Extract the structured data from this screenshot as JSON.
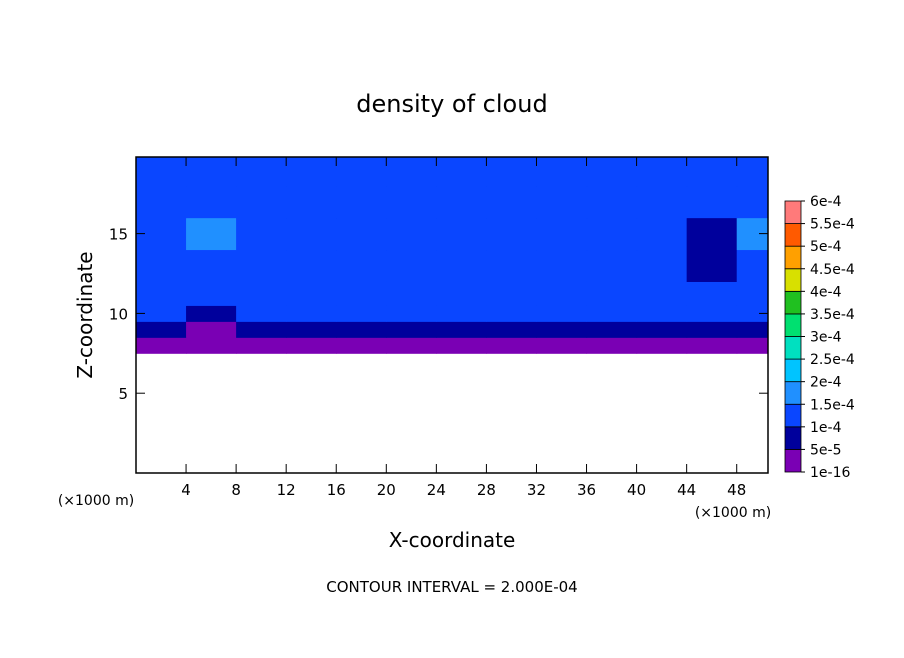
{
  "chart_data": {
    "type": "contour",
    "title": "density of cloud",
    "x_label": "X-coordinate",
    "y_label": "Z-coordinate",
    "x_unit_left": "(×1000 m)",
    "x_unit_right": "(×1000 m)",
    "annotation": "CONTOUR INTERVAL = 2.000E-04",
    "xlim": [
      0,
      50.5
    ],
    "ylim": [
      0,
      19.8
    ],
    "xticks": [
      4,
      8,
      12,
      16,
      20,
      24,
      28,
      32,
      36,
      40,
      44,
      48
    ],
    "yticks": [
      5,
      10,
      15
    ],
    "x_edges": [
      0,
      4,
      8,
      12,
      16,
      20,
      24,
      28,
      32,
      36,
      40,
      44,
      48,
      50.5
    ],
    "z_edges": [
      7.5,
      8.5,
      9.5,
      10.5,
      12,
      14,
      16,
      18,
      19.8
    ],
    "values": [
      [
        3e-05,
        3e-05,
        3e-05,
        3e-05,
        3e-05,
        3e-05,
        3e-05,
        3e-05,
        3e-05,
        3e-05,
        3e-05,
        3e-05,
        3e-05
      ],
      [
        7e-05,
        4e-05,
        7e-05,
        7e-05,
        7e-05,
        7e-05,
        7e-05,
        7e-05,
        7e-05,
        7e-05,
        7e-05,
        7e-05,
        7e-05
      ],
      [
        0.00011,
        8e-05,
        0.00011,
        0.00011,
        0.00011,
        0.00011,
        0.00011,
        0.00011,
        0.00011,
        0.00011,
        0.00011,
        0.00011,
        0.00011
      ],
      [
        0.00011,
        0.00012,
        0.00012,
        0.00012,
        0.00012,
        0.00012,
        0.00012,
        0.00012,
        0.00012,
        0.00012,
        0.00012,
        0.00012,
        0.00012
      ],
      [
        0.00012,
        0.00013,
        0.00013,
        0.00013,
        0.00013,
        0.00013,
        0.00013,
        0.00013,
        0.00013,
        0.00013,
        0.00013,
        8e-05,
        0.00013
      ],
      [
        0.00014,
        0.00016,
        0.00014,
        0.00014,
        0.00014,
        0.00014,
        0.00014,
        0.00014,
        0.00014,
        0.00014,
        0.00014,
        8e-05,
        0.00015
      ],
      [
        0.00014,
        0.00014,
        0.00014,
        0.00014,
        0.00014,
        0.00014,
        0.00014,
        0.00014,
        0.00014,
        0.00014,
        0.00014,
        0.00011,
        0.00014
      ],
      [
        0.00012,
        0.00012,
        0.00012,
        0.00012,
        0.00012,
        0.00012,
        0.00012,
        0.00012,
        0.00012,
        0.00012,
        0.00012,
        0.00012,
        0.00012
      ]
    ],
    "colorbar_ticks": [
      {
        "value": 1e-16,
        "label": "1e-16"
      },
      {
        "value": 5e-05,
        "label": "5e-5"
      },
      {
        "value": 0.0001,
        "label": "1e-4"
      },
      {
        "value": 0.00015,
        "label": "1.5e-4"
      },
      {
        "value": 0.0002,
        "label": "2e-4"
      },
      {
        "value": 0.00025,
        "label": "2.5e-4"
      },
      {
        "value": 0.0003,
        "label": "3e-4"
      },
      {
        "value": 0.00035,
        "label": "3.5e-4"
      },
      {
        "value": 0.0004,
        "label": "4e-4"
      },
      {
        "value": 0.00045,
        "label": "4.5e-4"
      },
      {
        "value": 0.0005,
        "label": "5e-4"
      },
      {
        "value": 0.00055,
        "label": "5.5e-4"
      },
      {
        "value": 0.0006,
        "label": "6e-4"
      }
    ],
    "colors": [
      "#7a00b4",
      "#00009c",
      "#0a46ff",
      "#2090ff",
      "#00c4ff",
      "#00e0c0",
      "#00e070",
      "#20c020",
      "#d8e000",
      "#ffa000",
      "#ff5a00",
      "#ff7a7a"
    ]
  }
}
